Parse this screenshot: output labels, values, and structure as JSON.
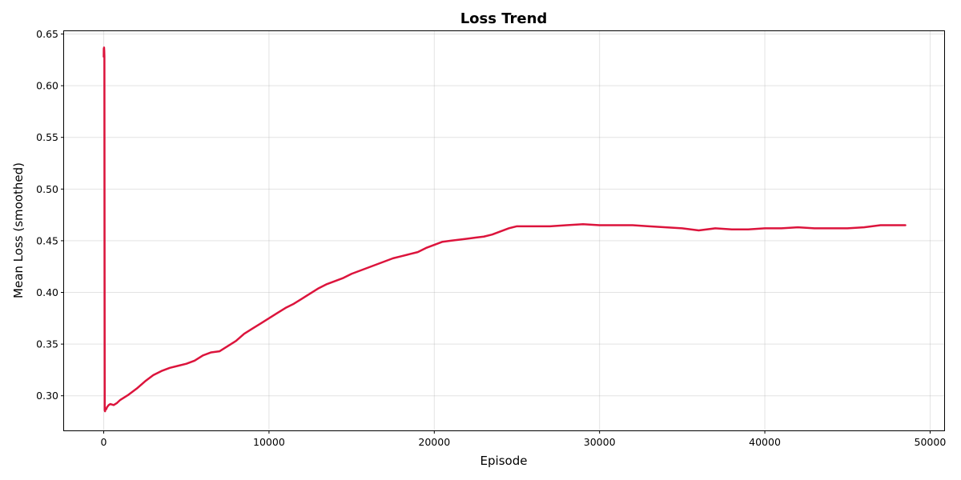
{
  "chart_data": {
    "type": "line",
    "title": "Loss Trend",
    "xlabel": "Episode",
    "ylabel": "Mean Loss (smoothed)",
    "xlim": [
      -2400,
      50900
    ],
    "ylim": [
      0.2665,
      0.6535
    ],
    "xticks": [
      0,
      10000,
      20000,
      30000,
      40000,
      50000
    ],
    "xtick_labels": [
      "0",
      "10000",
      "20000",
      "30000",
      "40000",
      "50000"
    ],
    "yticks": [
      0.3,
      0.35,
      0.4,
      0.45,
      0.5,
      0.55,
      0.6,
      0.65
    ],
    "ytick_labels": [
      "0.30",
      "0.35",
      "0.40",
      "0.45",
      "0.50",
      "0.55",
      "0.60",
      "0.65"
    ],
    "grid": true,
    "series": [
      {
        "color": "#dc143c",
        "x": [
          0,
          5,
          10,
          20,
          30,
          40,
          50,
          60,
          80,
          100,
          150,
          200,
          300,
          400,
          600,
          800,
          1000,
          1500,
          2000,
          2500,
          3000,
          3500,
          4000,
          4500,
          5000,
          5500,
          6000,
          6500,
          7000,
          7500,
          8000,
          8500,
          9000,
          9500,
          10000,
          10500,
          11000,
          11500,
          12000,
          12500,
          13000,
          13500,
          14000,
          14500,
          15000,
          15500,
          16000,
          16500,
          17000,
          17500,
          18000,
          18500,
          19000,
          19500,
          20000,
          20500,
          21000,
          21500,
          22000,
          22500,
          23000,
          23500,
          24000,
          24500,
          25000,
          26000,
          27000,
          28000,
          29000,
          30000,
          31000,
          32000,
          33000,
          34000,
          35000,
          36000,
          37000,
          38000,
          39000,
          40000,
          41000,
          42000,
          43000,
          44000,
          45000,
          46000,
          47000,
          48000,
          48500
        ],
        "y": [
          0.628,
          0.636,
          0.632,
          0.637,
          0.634,
          0.628,
          0.45,
          0.286,
          0.285,
          0.287,
          0.287,
          0.289,
          0.291,
          0.292,
          0.291,
          0.293,
          0.296,
          0.301,
          0.307,
          0.314,
          0.32,
          0.324,
          0.327,
          0.329,
          0.331,
          0.334,
          0.339,
          0.342,
          0.343,
          0.348,
          0.353,
          0.36,
          0.365,
          0.37,
          0.375,
          0.38,
          0.385,
          0.389,
          0.394,
          0.399,
          0.404,
          0.408,
          0.411,
          0.414,
          0.418,
          0.421,
          0.424,
          0.427,
          0.43,
          0.433,
          0.435,
          0.437,
          0.439,
          0.443,
          0.446,
          0.449,
          0.45,
          0.451,
          0.452,
          0.453,
          0.454,
          0.456,
          0.459,
          0.462,
          0.464,
          0.464,
          0.464,
          0.465,
          0.466,
          0.465,
          0.465,
          0.465,
          0.464,
          0.463,
          0.462,
          0.46,
          0.462,
          0.461,
          0.461,
          0.462,
          0.462,
          0.463,
          0.462,
          0.462,
          0.462,
          0.463,
          0.465,
          0.465,
          0.465
        ]
      }
    ]
  }
}
